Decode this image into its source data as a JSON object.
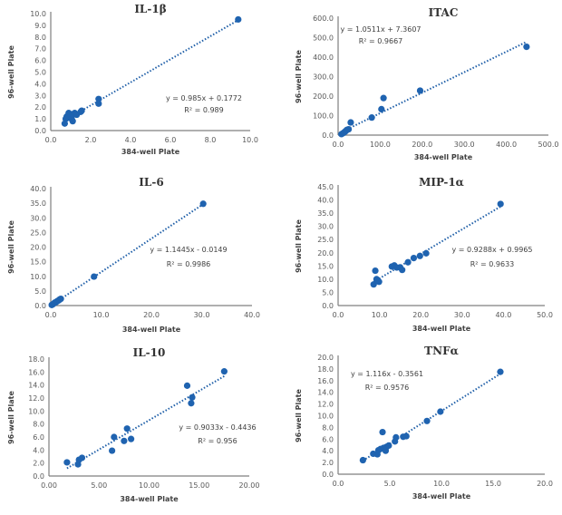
{
  "chart_data": [
    {
      "type": "scatter",
      "title": "IL-1β",
      "xlabel": "384-well Plate",
      "ylabel": "96-well Plate",
      "xlim": [
        0,
        10
      ],
      "ylim": [
        0,
        10
      ],
      "xticks": [
        "0.0",
        "2.0",
        "4.0",
        "6.0",
        "8.0",
        "10.0"
      ],
      "yticks": [
        "0.0",
        "1.0",
        "2.0",
        "3.0",
        "4.0",
        "5.0",
        "6.0",
        "7.0",
        "8.0",
        "9.0",
        "10.0"
      ],
      "equation": "y = 0.985x + 0.1772",
      "r2": "R² = 0.989",
      "trend": {
        "slope": 0.985,
        "intercept": 0.1772,
        "x_range": [
          0.7,
          9.4
        ]
      },
      "points": [
        [
          0.7,
          0.6
        ],
        [
          0.75,
          1.0
        ],
        [
          0.8,
          1.2
        ],
        [
          0.9,
          1.5
        ],
        [
          0.9,
          1.1
        ],
        [
          1.0,
          1.3
        ],
        [
          1.05,
          1.0
        ],
        [
          1.1,
          1.4
        ],
        [
          1.1,
          0.8
        ],
        [
          1.2,
          1.5
        ],
        [
          1.3,
          1.35
        ],
        [
          1.5,
          1.6
        ],
        [
          1.55,
          1.7
        ],
        [
          2.4,
          2.7
        ],
        [
          2.4,
          2.3
        ],
        [
          9.4,
          9.5
        ]
      ]
    },
    {
      "type": "scatter",
      "title": "ITAC",
      "xlabel": "384-well Plate",
      "ylabel": "96-well Plate",
      "xlim": [
        0,
        500
      ],
      "ylim": [
        0,
        600
      ],
      "xticks": [
        "0.0",
        "100.0",
        "200.0",
        "300.0",
        "400.0",
        "500.0"
      ],
      "yticks": [
        "0.0",
        "100.0",
        "200.0",
        "300.0",
        "400.0",
        "500.0",
        "600.0"
      ],
      "equation": "y = 1.0511x + 7.3607",
      "r2": "R² = 0.9667",
      "trend": {
        "slope": 1.0511,
        "intercept": 7.3607,
        "x_range": [
          8,
          445
        ]
      },
      "points": [
        [
          8,
          5
        ],
        [
          12,
          10
        ],
        [
          15,
          15
        ],
        [
          18,
          20
        ],
        [
          20,
          25
        ],
        [
          22,
          28
        ],
        [
          25,
          30
        ],
        [
          30,
          65
        ],
        [
          80,
          90
        ],
        [
          103,
          133
        ],
        [
          108,
          190
        ],
        [
          195,
          228
        ],
        [
          448,
          453
        ]
      ]
    },
    {
      "type": "scatter",
      "title": "IL-6",
      "xlabel": "384-well Plate",
      "ylabel": "96-well Plate",
      "xlim": [
        0,
        40
      ],
      "ylim": [
        0,
        40
      ],
      "xticks": [
        "0.0",
        "10.0",
        "20.0",
        "30.0",
        "40.0"
      ],
      "yticks": [
        "0.0",
        "5.0",
        "10.0",
        "15.0",
        "20.0",
        "25.0",
        "30.0",
        "35.0",
        "40.0"
      ],
      "equation": "y = 1.1445x - 0.0149",
      "r2": "R² = 0.9986",
      "trend": {
        "slope": 1.1445,
        "intercept": -0.0149,
        "x_range": [
          0.2,
          30.3
        ]
      },
      "points": [
        [
          0.2,
          0.2
        ],
        [
          0.4,
          0.4
        ],
        [
          0.6,
          0.7
        ],
        [
          0.8,
          1.0
        ],
        [
          1.0,
          1.1
        ],
        [
          1.2,
          1.4
        ],
        [
          1.4,
          1.6
        ],
        [
          1.6,
          1.8
        ],
        [
          1.8,
          2.1
        ],
        [
          2.0,
          2.3
        ],
        [
          8.6,
          9.9
        ],
        [
          30.3,
          34.8
        ]
      ]
    },
    {
      "type": "scatter",
      "title": "MIP-1α",
      "xlabel": "384-well Plate",
      "ylabel": "96-well Plate",
      "xlim": [
        0,
        50
      ],
      "ylim": [
        0,
        45
      ],
      "xticks": [
        "0.0",
        "10.0",
        "20.0",
        "30.0",
        "40.0",
        "50.0"
      ],
      "yticks": [
        "0.0",
        "5.0",
        "10.0",
        "15.0",
        "20.0",
        "25.0",
        "30.0",
        "35.0",
        "40.0",
        "45.0"
      ],
      "equation": "y = 0.9288x + 0.9965",
      "r2": "R² = 0.9633",
      "trend": {
        "slope": 0.9288,
        "intercept": 0.9965,
        "x_range": [
          8.6,
          39.3
        ]
      },
      "points": [
        [
          8.6,
          8.0
        ],
        [
          9.0,
          13.2
        ],
        [
          9.3,
          10.0
        ],
        [
          9.6,
          9.5
        ],
        [
          9.9,
          9.0
        ],
        [
          13.0,
          14.8
        ],
        [
          13.6,
          15.2
        ],
        [
          14.2,
          14.4
        ],
        [
          15.0,
          14.5
        ],
        [
          15.5,
          13.5
        ],
        [
          16.9,
          16.4
        ],
        [
          18.3,
          18.0
        ],
        [
          19.8,
          18.8
        ],
        [
          21.3,
          19.8
        ],
        [
          39.3,
          38.5
        ]
      ]
    },
    {
      "type": "scatter",
      "title": "IL-10",
      "xlabel": "384-well Plate",
      "ylabel": "96-well Plate",
      "xlim": [
        0,
        20
      ],
      "ylim": [
        0,
        18
      ],
      "xticks": [
        "0.00",
        "5.00",
        "10.00",
        "15.00",
        "20.00"
      ],
      "yticks": [
        "0.0",
        "2.0",
        "4.0",
        "6.0",
        "8.0",
        "10.0",
        "12.0",
        "14.0",
        "16.0",
        "18.0"
      ],
      "equation": "y = 0.9033x - 0.4436",
      "r2": "R² = 0.956",
      "trend": {
        "slope": 0.9033,
        "intercept": -0.4436,
        "x_range": [
          1.8,
          17.5
        ]
      },
      "points": [
        [
          1.8,
          2.1
        ],
        [
          2.9,
          1.8
        ],
        [
          3.0,
          2.5
        ],
        [
          3.3,
          2.8
        ],
        [
          6.3,
          3.9
        ],
        [
          6.5,
          6.0
        ],
        [
          7.5,
          5.4
        ],
        [
          7.8,
          7.3
        ],
        [
          8.2,
          5.7
        ],
        [
          13.8,
          13.9
        ],
        [
          14.2,
          11.2
        ],
        [
          14.3,
          12.1
        ],
        [
          17.5,
          16.1
        ]
      ]
    },
    {
      "type": "scatter",
      "title": "TNFα",
      "xlabel": "384-well Plate",
      "ylabel": "96-well Plate",
      "xlim": [
        0,
        20
      ],
      "ylim": [
        0,
        20
      ],
      "xticks": [
        "0.0",
        "5.0",
        "10.0",
        "15.0",
        "20.0"
      ],
      "yticks": [
        "0.0",
        "2.0",
        "4.0",
        "6.0",
        "8.0",
        "10.0",
        "12.0",
        "14.0",
        "16.0",
        "18.0",
        "20.0"
      ],
      "equation": "y = 1.116x - 0.3561",
      "r2": "R² = 0.9576",
      "trend": {
        "slope": 1.116,
        "intercept": -0.3561,
        "x_range": [
          2.4,
          15.7
        ]
      },
      "points": [
        [
          2.4,
          2.4
        ],
        [
          3.4,
          3.5
        ],
        [
          3.8,
          3.4
        ],
        [
          3.9,
          4.1
        ],
        [
          4.1,
          4.3
        ],
        [
          4.3,
          7.2
        ],
        [
          4.4,
          4.5
        ],
        [
          4.6,
          4.0
        ],
        [
          4.7,
          4.7
        ],
        [
          4.9,
          4.9
        ],
        [
          5.5,
          5.6
        ],
        [
          5.6,
          6.3
        ],
        [
          6.3,
          6.4
        ],
        [
          6.6,
          6.5
        ],
        [
          8.6,
          9.1
        ],
        [
          9.9,
          10.7
        ],
        [
          15.7,
          17.5
        ]
      ]
    }
  ]
}
